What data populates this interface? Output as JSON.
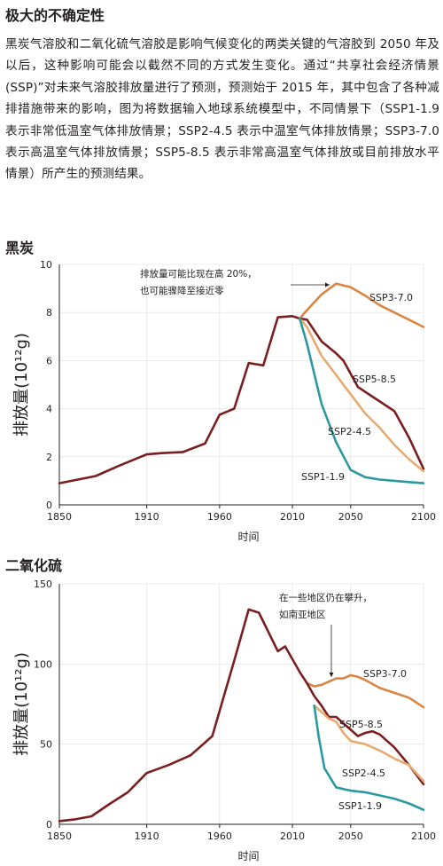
{
  "article": {
    "heading": "极大的不确定性",
    "body": "黑炭气溶胶和二氧化硫气溶胶是影响气候变化的两类关键的气溶胶到 2050 年及以后，这种影响可能会以截然不同的方式发生变化。通过“共享社会经济情景(SSP)”对未来气溶胶排放量进行了预测，预测始于 2015 年，其中包含了各种减排措施带来的影响，图为将数据输入地球系统模型中，不同情景下（SSP1-1.9 表示非常低温室气体排放情景；SSP2-4.5 表示中温室气体排放情景；SSP3-7.0 表示高温室气体排放情景；SSP5-8.5 表示非常高温室气体排放或目前排放水平情景）所产生的预测结果。"
  },
  "colors": {
    "historical": "#7a1e20",
    "SSP3-7.0": "#d98644",
    "SSP5-8.5": "#7a1e20",
    "SSP2-4.5": "#e7ab72",
    "SSP1-1.9": "#2a9aa0",
    "axis": "#231f20",
    "grid": "#dddddd"
  },
  "chart_data": [
    {
      "type": "line",
      "title": "黑炭",
      "xlabel": "时间",
      "ylabel": "排放量(10¹²g)",
      "xlim": [
        1850,
        2100
      ],
      "ylim": [
        0,
        10
      ],
      "xticks": [
        1850,
        1910,
        1960,
        2010,
        2050,
        2100
      ],
      "yticks": [
        0,
        2,
        4,
        6,
        8,
        10
      ],
      "annotation": [
        "排放量可能比现在高 20%，",
        "也可能骤降至接近零"
      ],
      "series": [
        {
          "name": "",
          "key": "historical",
          "x": [
            1850,
            1875,
            1890,
            1910,
            1920,
            1935,
            1950,
            1960,
            1970,
            1980,
            1990,
            2000,
            2010,
            2015
          ],
          "y": [
            0.9,
            1.2,
            1.6,
            2.1,
            2.15,
            2.2,
            2.55,
            3.75,
            4.0,
            5.9,
            5.8,
            7.8,
            7.85,
            7.75
          ]
        },
        {
          "name": "SSP3-7.0",
          "key": "SSP3-7.0",
          "x": [
            2015,
            2020,
            2030,
            2040,
            2050,
            2060,
            2070,
            2080,
            2090,
            2100
          ],
          "y": [
            7.75,
            8.1,
            8.75,
            9.2,
            9.05,
            8.7,
            8.3,
            8.0,
            7.7,
            7.4
          ]
        },
        {
          "name": "SSP5-8.5",
          "key": "SSP5-8.5",
          "x": [
            2015,
            2020,
            2030,
            2040,
            2045,
            2055,
            2070,
            2080,
            2090,
            2100
          ],
          "y": [
            7.75,
            7.7,
            6.8,
            6.3,
            6.0,
            4.9,
            4.3,
            3.9,
            2.8,
            1.5
          ]
        },
        {
          "name": "SSP2-4.5",
          "key": "SSP2-4.5",
          "x": [
            2015,
            2020,
            2030,
            2040,
            2050,
            2060,
            2070,
            2080,
            2090,
            2100
          ],
          "y": [
            7.75,
            7.4,
            6.2,
            5.4,
            4.6,
            3.8,
            3.2,
            2.5,
            1.9,
            1.4
          ]
        },
        {
          "name": "SSP1-1.9",
          "key": "SSP1-1.9",
          "x": [
            2015,
            2020,
            2030,
            2040,
            2050,
            2060,
            2070,
            2080,
            2090,
            2100
          ],
          "y": [
            7.75,
            6.7,
            4.2,
            2.6,
            1.45,
            1.15,
            1.05,
            1.0,
            0.95,
            0.9
          ]
        }
      ]
    },
    {
      "type": "line",
      "title": "二氧化硫",
      "xlabel": "时间",
      "ylabel": "排放量(10¹²g)",
      "xlim": [
        1850,
        2100
      ],
      "ylim": [
        0,
        150
      ],
      "xticks": [
        1850,
        1910,
        1960,
        2010,
        2050,
        2100
      ],
      "yticks": [
        0,
        50,
        100,
        150
      ],
      "annotation": [
        "在一些地区仍在攀升，",
        "如南亚地区"
      ],
      "series": [
        {
          "name": "",
          "key": "historical",
          "x": [
            1850,
            1860,
            1872,
            1885,
            1897,
            1910,
            1925,
            1940,
            1955,
            1970,
            1980,
            1987,
            2000,
            2005,
            2015,
            2020
          ],
          "y": [
            2,
            3,
            5,
            13,
            20,
            32,
            37,
            43,
            55,
            102,
            134,
            132,
            108,
            111,
            95,
            88
          ]
        },
        {
          "name": "SSP3-7.0",
          "key": "SSP3-7.0",
          "x": [
            2020,
            2025,
            2030,
            2040,
            2045,
            2050,
            2055,
            2060,
            2070,
            2080,
            2090,
            2100
          ],
          "y": [
            88,
            86,
            87,
            91,
            91,
            93,
            92,
            90,
            85,
            82,
            79,
            73
          ]
        },
        {
          "name": "SSP5-8.5",
          "key": "SSP5-8.5",
          "x": [
            2020,
            2025,
            2030,
            2035,
            2040,
            2045,
            2050,
            2055,
            2060,
            2065,
            2070,
            2080,
            2090,
            2100
          ],
          "y": [
            88,
            80,
            74,
            67,
            67,
            63,
            59,
            55,
            57,
            58,
            56,
            48,
            37,
            25
          ]
        },
        {
          "name": "SSP2-4.5",
          "key": "SSP2-4.5",
          "x": [
            2025,
            2030,
            2035,
            2040,
            2045,
            2050,
            2060,
            2070,
            2080,
            2090,
            2100
          ],
          "y": [
            74,
            70,
            66,
            64,
            57,
            52,
            50,
            46,
            41,
            37,
            27
          ]
        },
        {
          "name": "SSP1-1.9",
          "key": "SSP1-1.9",
          "x": [
            2025,
            2028,
            2032,
            2040,
            2050,
            2060,
            2070,
            2080,
            2090,
            2100
          ],
          "y": [
            74,
            55,
            35,
            23,
            21,
            20,
            18,
            16,
            13,
            9
          ]
        }
      ]
    }
  ]
}
